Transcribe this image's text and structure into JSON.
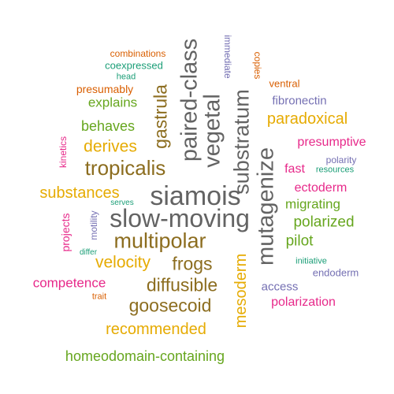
{
  "palette": {
    "gray": "#636363",
    "brown": "#8c6d1f",
    "gold": "#e6ab02",
    "green": "#66a61e",
    "magenta": "#e7298a",
    "purple": "#7570b3",
    "orange": "#d95f02",
    "teal": "#1b9e77"
  },
  "words": [
    {
      "text": "siamois",
      "color": "gray",
      "weight": 34
    },
    {
      "text": "slow-moving",
      "color": "gray",
      "weight": 32
    },
    {
      "text": "paired-class",
      "color": "gray",
      "weight": 29
    },
    {
      "text": "mutagenize",
      "color": "gray",
      "weight": 29
    },
    {
      "text": "vegetal",
      "color": "gray",
      "weight": 29
    },
    {
      "text": "substratum",
      "color": "gray",
      "weight": 27
    },
    {
      "text": "multipolar",
      "color": "brown",
      "weight": 27
    },
    {
      "text": "tropicalis",
      "color": "brown",
      "weight": 26
    },
    {
      "text": "gastrula",
      "color": "brown",
      "weight": 23
    },
    {
      "text": "frogs",
      "color": "brown",
      "weight": 23
    },
    {
      "text": "diffusible",
      "color": "brown",
      "weight": 23
    },
    {
      "text": "goosecoid",
      "color": "brown",
      "weight": 23
    },
    {
      "text": "derives",
      "color": "gold",
      "weight": 21
    },
    {
      "text": "velocity",
      "color": "gold",
      "weight": 21
    },
    {
      "text": "substances",
      "color": "gold",
      "weight": 20
    },
    {
      "text": "paradoxical",
      "color": "gold",
      "weight": 20
    },
    {
      "text": "mesoderm",
      "color": "gold",
      "weight": 20
    },
    {
      "text": "recommended",
      "color": "gold",
      "weight": 20
    },
    {
      "text": "polarized",
      "color": "green",
      "weight": 19
    },
    {
      "text": "pilot",
      "color": "green",
      "weight": 19
    },
    {
      "text": "behaves",
      "color": "green",
      "weight": 18
    },
    {
      "text": "homeodomain-containing",
      "color": "green",
      "weight": 18
    },
    {
      "text": "explains",
      "color": "green",
      "weight": 17
    },
    {
      "text": "migrating",
      "color": "green",
      "weight": 17
    },
    {
      "text": "competence",
      "color": "magenta",
      "weight": 17
    },
    {
      "text": "presumptive",
      "color": "magenta",
      "weight": 16
    },
    {
      "text": "polarization",
      "color": "magenta",
      "weight": 16
    },
    {
      "text": "ectoderm",
      "color": "magenta",
      "weight": 16
    },
    {
      "text": "fast",
      "color": "magenta",
      "weight": 16
    },
    {
      "text": "projects",
      "color": "magenta",
      "weight": 14
    },
    {
      "text": "fibronectin",
      "color": "purple",
      "weight": 15
    },
    {
      "text": "access",
      "color": "purple",
      "weight": 15
    },
    {
      "text": "endoderm",
      "color": "purple",
      "weight": 13
    },
    {
      "text": "polarity",
      "color": "purple",
      "weight": 12
    },
    {
      "text": "motility",
      "color": "purple",
      "weight": 12
    },
    {
      "text": "immediate",
      "color": "purple",
      "weight": 12
    },
    {
      "text": "presumably",
      "color": "orange",
      "weight": 14
    },
    {
      "text": "ventral",
      "color": "orange",
      "weight": 13
    },
    {
      "text": "combinations",
      "color": "orange",
      "weight": 12
    },
    {
      "text": "copies",
      "color": "orange",
      "weight": 12
    },
    {
      "text": "trait",
      "color": "orange",
      "weight": 11
    },
    {
      "text": "kinetics",
      "color": "magenta",
      "weight": 12
    },
    {
      "text": "coexpressed",
      "color": "teal",
      "weight": 13
    },
    {
      "text": "head",
      "color": "teal",
      "weight": 11
    },
    {
      "text": "resources",
      "color": "teal",
      "weight": 11
    },
    {
      "text": "initiative",
      "color": "teal",
      "weight": 11
    },
    {
      "text": "serves",
      "color": "teal",
      "weight": 10
    },
    {
      "text": "differ",
      "color": "teal",
      "weight": 10
    }
  ]
}
